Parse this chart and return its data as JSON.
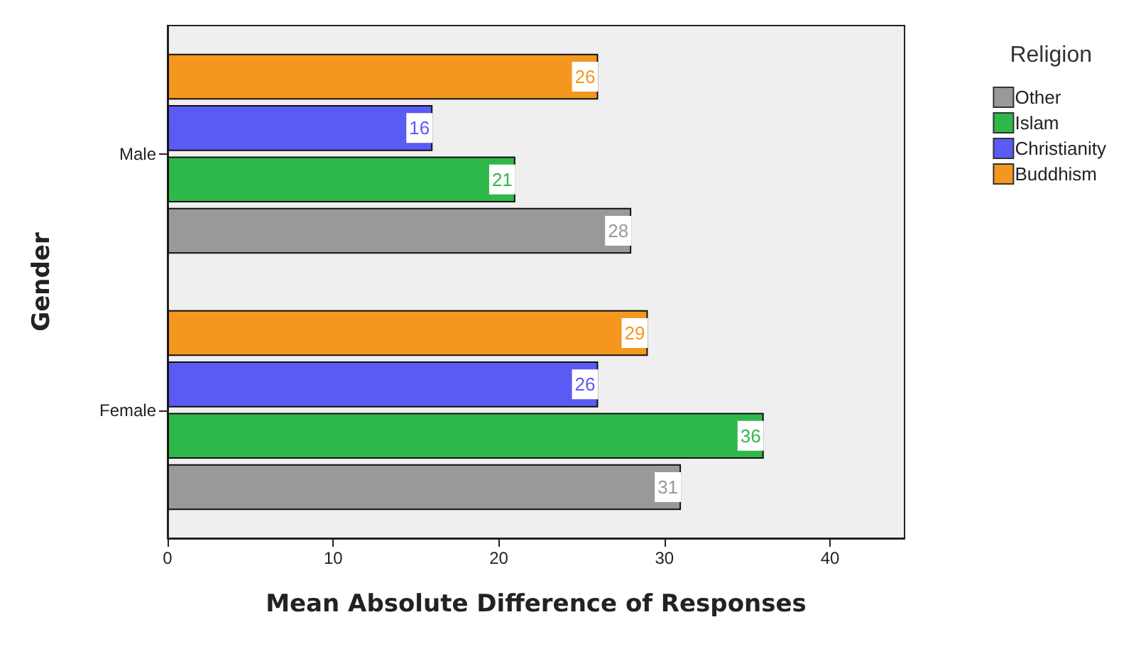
{
  "chart_data": {
    "type": "bar",
    "orientation": "horizontal",
    "xlabel": "Mean Absolute Difference of Responses",
    "ylabel": "Gender",
    "legend_title": "Religion",
    "categories": [
      "Male",
      "Female"
    ],
    "series": [
      {
        "name": "Other",
        "color": "#999999",
        "values": [
          28,
          31
        ]
      },
      {
        "name": "Islam",
        "color": "#2fb84a",
        "values": [
          21,
          36
        ]
      },
      {
        "name": "Christianity",
        "color": "#5a5af5",
        "values": [
          16,
          26
        ]
      },
      {
        "name": "Buddhism",
        "color": "#f5961e",
        "values": [
          26,
          29
        ]
      }
    ],
    "xlim": [
      0,
      44.5
    ],
    "xticks": [
      0,
      10,
      20,
      30,
      40
    ],
    "grid": false,
    "legend": "top right",
    "data_labels": true
  }
}
